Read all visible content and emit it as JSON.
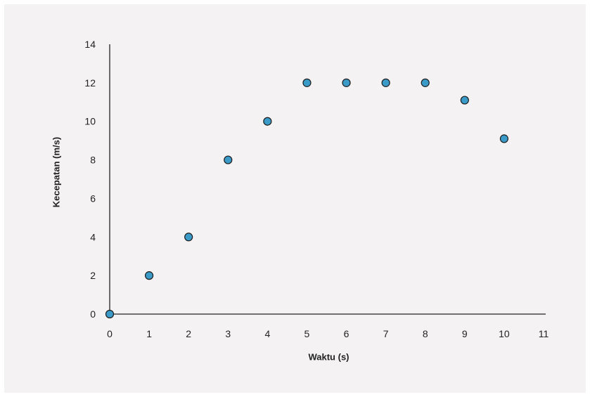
{
  "chart_data": {
    "type": "scatter",
    "title": "",
    "xlabel": "Waktu (s)",
    "ylabel": "Kecepatan (m/s)",
    "xlim": [
      0,
      11
    ],
    "ylim": [
      0,
      14
    ],
    "x_ticks": [
      0,
      1,
      2,
      3,
      4,
      5,
      6,
      7,
      8,
      9,
      10,
      11
    ],
    "y_ticks": [
      0,
      2,
      4,
      6,
      8,
      10,
      12,
      14
    ],
    "grid": false,
    "legend": "none",
    "series": [
      {
        "x": [
          0,
          1,
          2,
          3,
          4,
          5,
          6,
          7,
          8,
          9,
          10
        ],
        "y": [
          0,
          2,
          4,
          8,
          10,
          12,
          12,
          12,
          12,
          11.1,
          9.1
        ]
      }
    ],
    "colors": {
      "marker_fill": "#3a9bc8",
      "marker_stroke": "#1c1c1c",
      "axis": "#222222",
      "background": "#f4f2f3"
    }
  }
}
